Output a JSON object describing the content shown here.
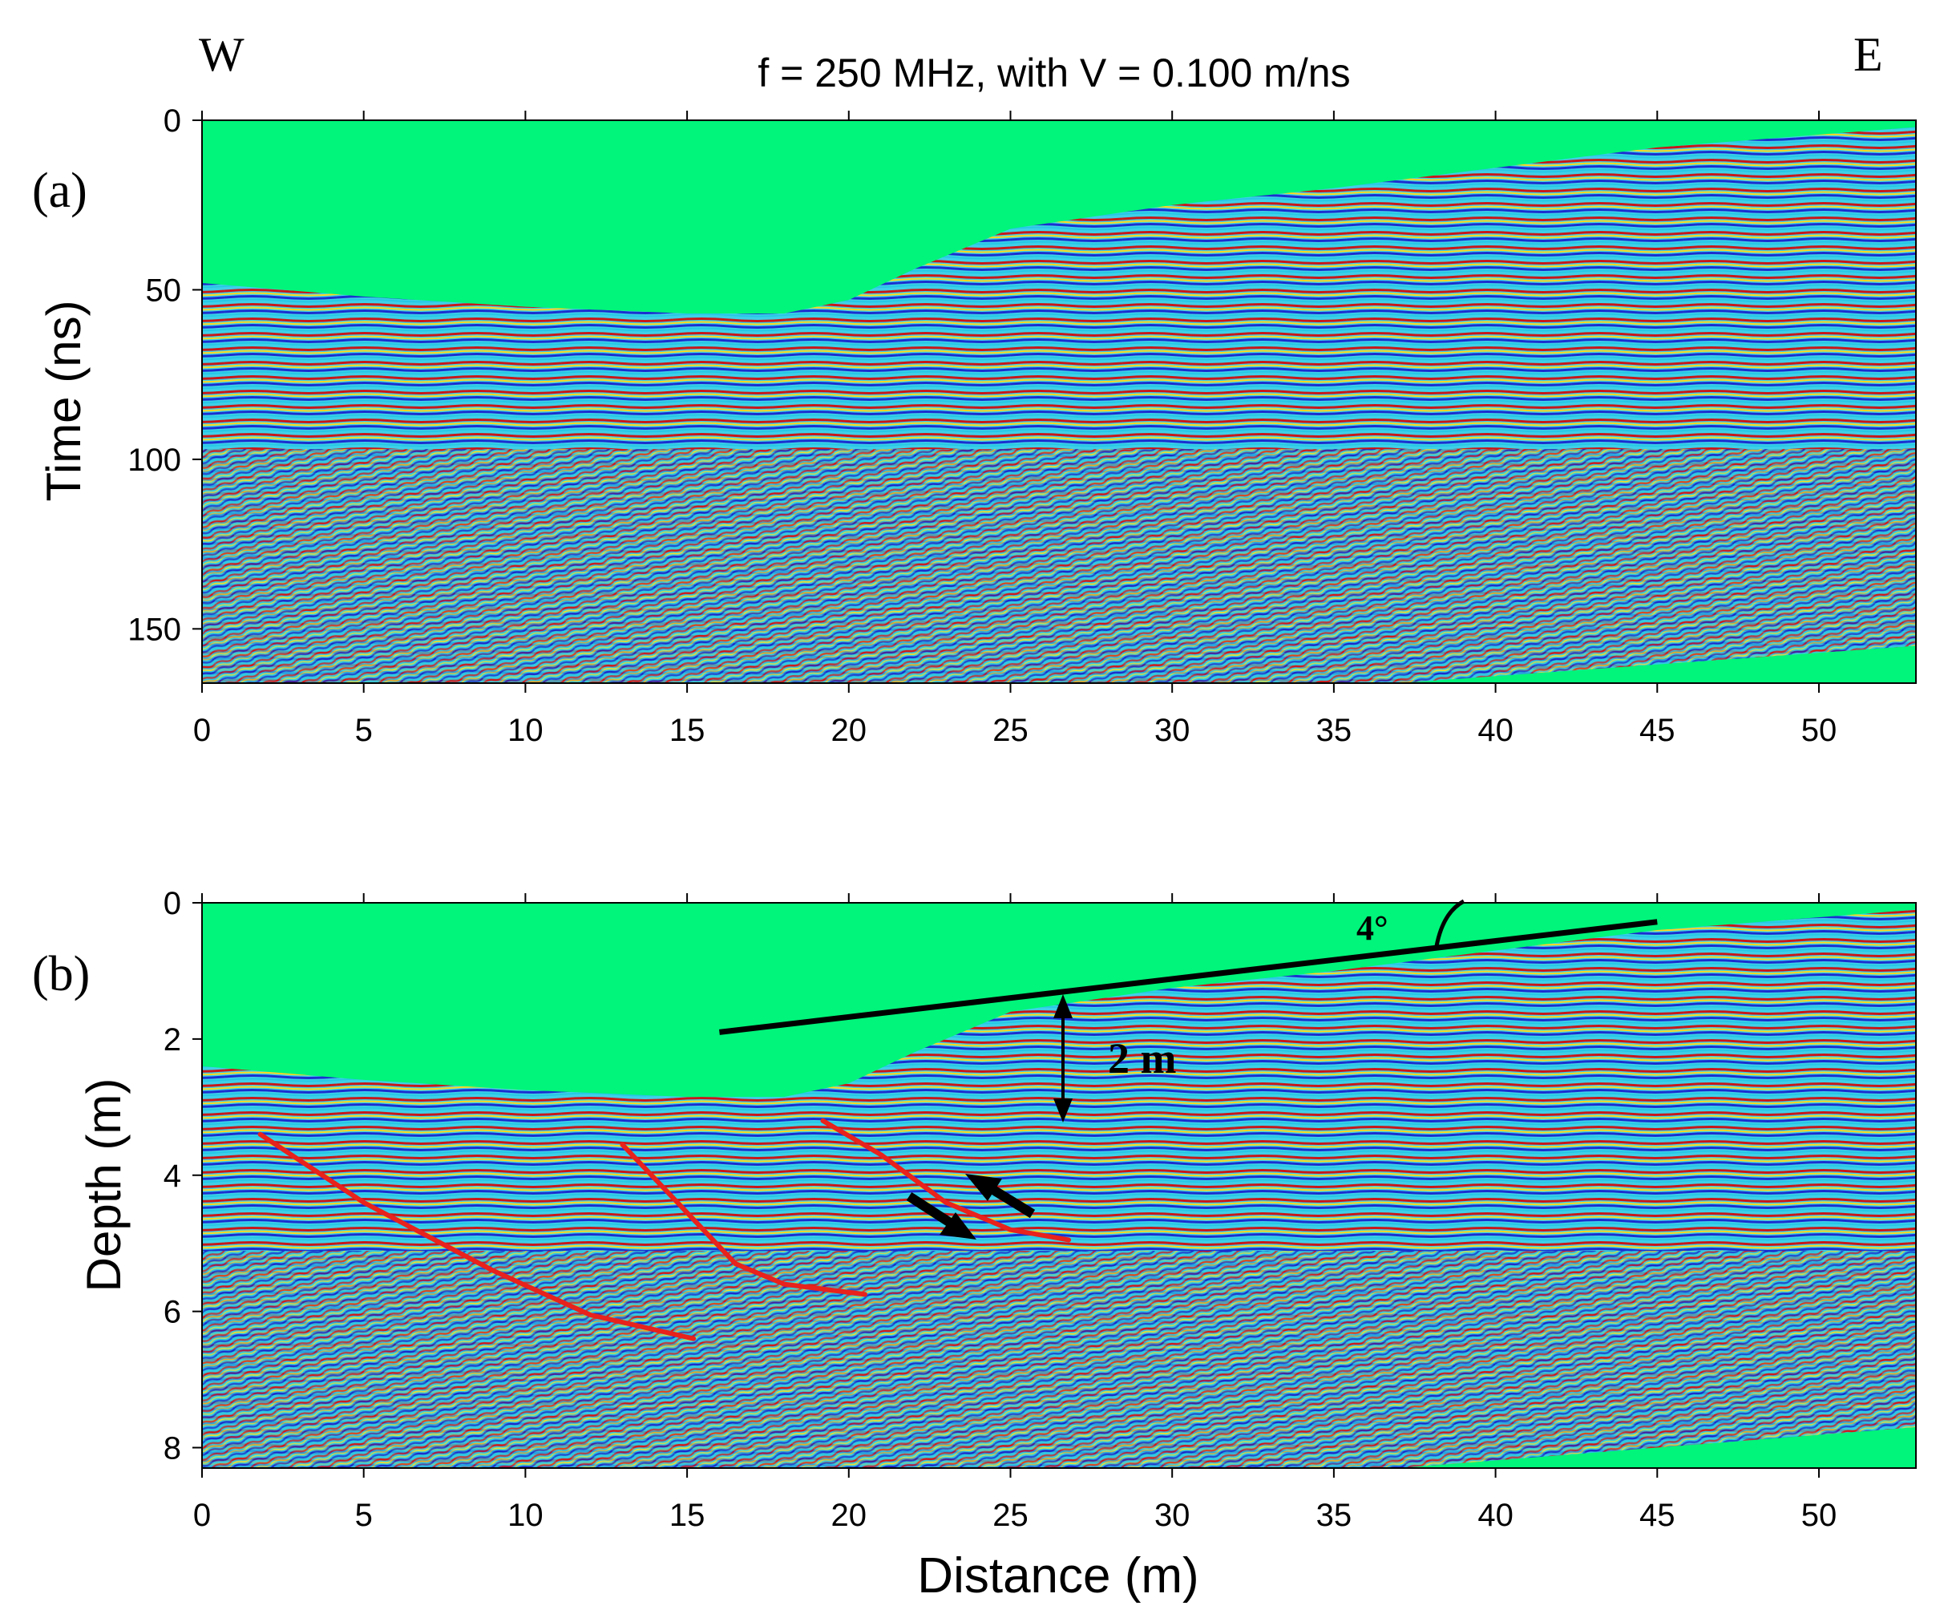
{
  "figure": {
    "title": "f =  250 MHz, with V =  0.100 m/ns",
    "west_label": "W",
    "east_label": "E",
    "fill_color": "#00f57a"
  },
  "chart_data": [
    {
      "type": "heatmap",
      "panel_label": "(a)",
      "title": "f =  250 MHz, with V =  0.100 m/ns",
      "xlabel": "",
      "ylabel": "Time (ns)",
      "xlim": [
        0,
        53
      ],
      "ylim": [
        0,
        166
      ],
      "y_inverted": true,
      "xticks": [
        0,
        5,
        10,
        15,
        20,
        25,
        30,
        35,
        40,
        45,
        50
      ],
      "yticks": [
        0,
        50,
        100,
        150
      ],
      "surface_profile": {
        "x": [
          0,
          5,
          10,
          15,
          18,
          20,
          22,
          25,
          30,
          35,
          40,
          45,
          53
        ],
        "y": [
          48,
          52,
          55,
          57,
          57,
          53,
          44,
          32,
          25,
          20,
          14,
          8,
          2
        ]
      },
      "bottom_profile": {
        "x": [
          0,
          37,
          53
        ],
        "y": [
          166,
          166,
          155
        ]
      }
    },
    {
      "type": "heatmap",
      "panel_label": "(b)",
      "xlabel": "Distance (m)",
      "ylabel": "Depth (m)",
      "xlim": [
        0,
        53
      ],
      "ylim": [
        0,
        8.3
      ],
      "y_inverted": true,
      "xticks": [
        0,
        5,
        10,
        15,
        20,
        25,
        30,
        35,
        40,
        45,
        50
      ],
      "yticks": [
        0,
        2,
        4,
        6,
        8
      ],
      "surface_profile": {
        "x": [
          0,
          5,
          10,
          15,
          18,
          20,
          22,
          25,
          30,
          35,
          40,
          45,
          53
        ],
        "y": [
          2.4,
          2.6,
          2.75,
          2.85,
          2.85,
          2.65,
          2.2,
          1.6,
          1.25,
          1.0,
          0.7,
          0.4,
          0.1
        ]
      },
      "bottom_profile": {
        "x": [
          0,
          37,
          53
        ],
        "y": [
          8.3,
          8.3,
          7.7
        ]
      },
      "fault_lines": [
        {
          "x": [
            1.8,
            5,
            9,
            12,
            15.2
          ],
          "y": [
            3.4,
            4.4,
            5.4,
            6.05,
            6.4
          ]
        },
        {
          "x": [
            13,
            14.5,
            16.5,
            18,
            20.5
          ],
          "y": [
            3.55,
            4.3,
            5.3,
            5.6,
            5.75
          ]
        },
        {
          "x": [
            19.2,
            21,
            23,
            25,
            26.8
          ],
          "y": [
            3.2,
            3.7,
            4.4,
            4.8,
            4.95
          ]
        }
      ],
      "slope_line": {
        "x": [
          16,
          45
        ],
        "y": [
          1.9,
          0.28
        ]
      },
      "annotations": {
        "angle_label": "4°",
        "thickness_label": "2 m"
      }
    }
  ]
}
